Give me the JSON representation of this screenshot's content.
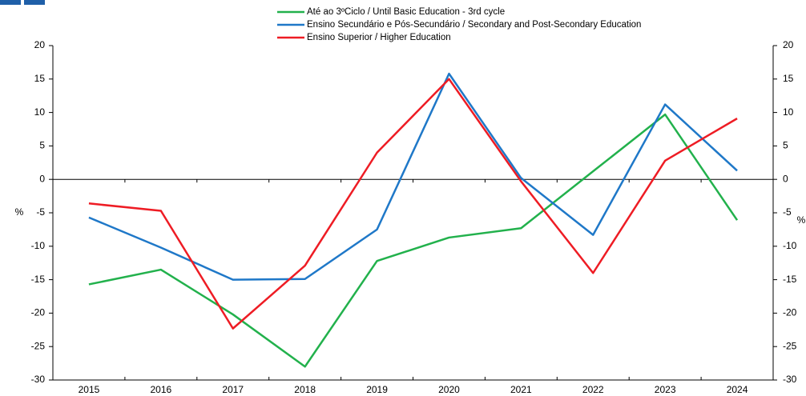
{
  "chart_data": {
    "type": "line",
    "categories": [
      "2015",
      "2016",
      "2017",
      "2018",
      "2019",
      "2020",
      "2021",
      "2022",
      "2023",
      "2024"
    ],
    "series": [
      {
        "name": "Até ao 3ºCiclo / Until Basic Education - 3rd cycle",
        "color": "#22b14c",
        "values": [
          -15.7,
          -13.5,
          -20.2,
          -28,
          -12.2,
          -8.7,
          -7.3,
          1.2,
          9.7,
          -6.1
        ]
      },
      {
        "name": "Ensino Secundário e Pós-Secundário / Secondary and Post-Secondary Education",
        "color": "#1f78c8",
        "values": [
          -5.7,
          -10.2,
          -15,
          -14.9,
          -7.5,
          15.8,
          0.2,
          -8.3,
          11.2,
          1.3
        ]
      },
      {
        "name": "Ensino Superior / Higher Education",
        "color": "#ee1c24",
        "values": [
          -3.6,
          -4.7,
          -22.3,
          -12.9,
          4,
          15,
          -0.3,
          -14,
          2.8,
          9.1
        ]
      }
    ],
    "y_label": "%",
    "ylim": [
      -30,
      20
    ],
    "yticks": [
      -30,
      -25,
      -20,
      -15,
      -10,
      -5,
      0,
      5,
      10,
      15,
      20
    ]
  }
}
